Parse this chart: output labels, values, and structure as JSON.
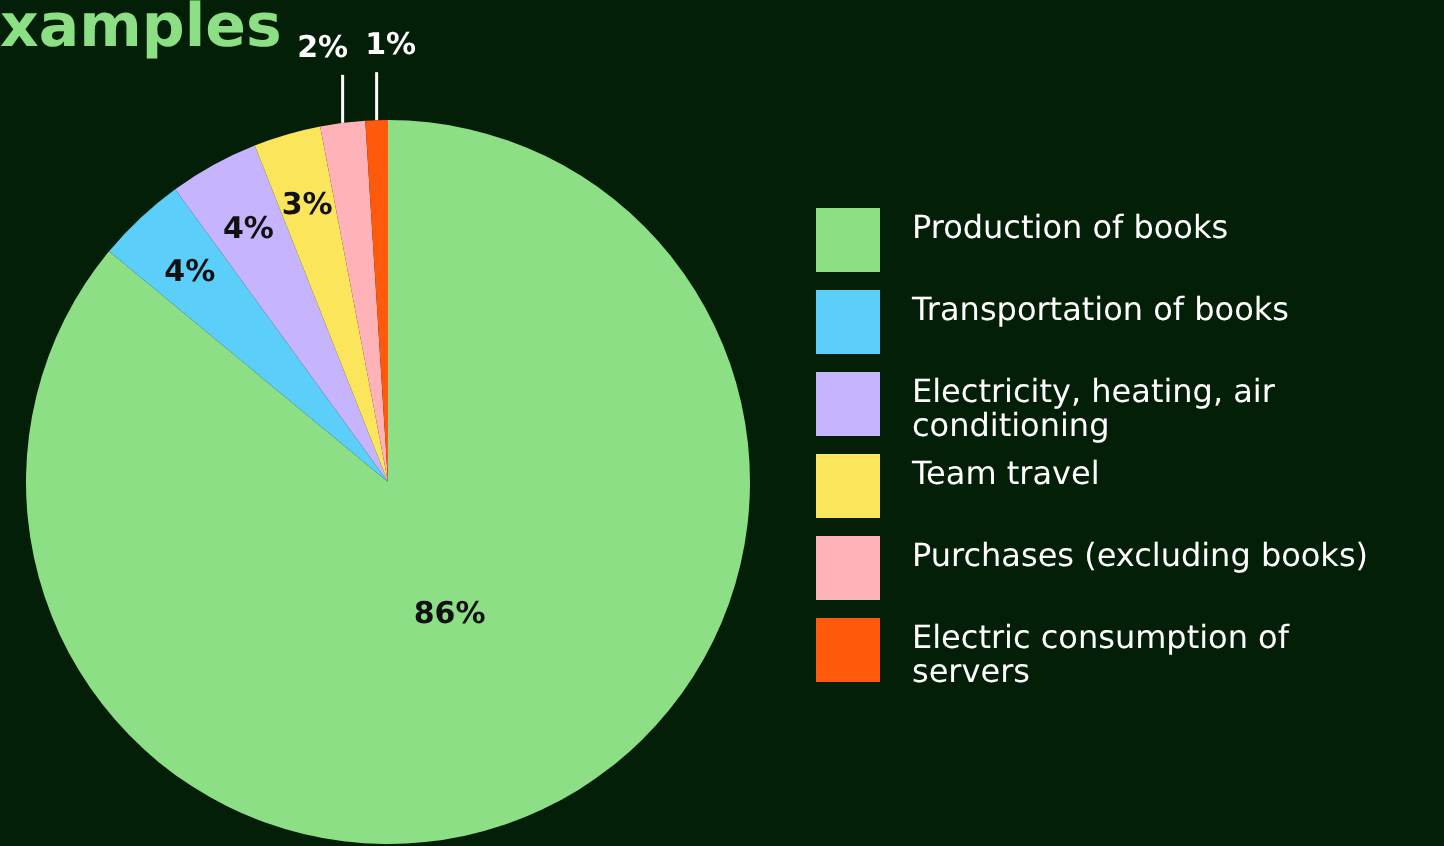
{
  "chart_data": {
    "type": "pie",
    "title": "xamples",
    "categories": [
      "Production of books",
      "Transportation of books",
      "Electricity, heating, air conditioning",
      "Team travel",
      "Purchases (excluding books)",
      "Electric consumption of servers"
    ],
    "values": [
      86,
      4,
      4,
      3,
      2,
      1
    ],
    "colors": [
      "#8ddf85",
      "#5bcefa",
      "#c6b5fe",
      "#fbe55a",
      "#ffb3b8",
      "#ff5a0c"
    ],
    "value_labels": [
      "86%",
      "4%",
      "4%",
      "3%",
      "2%",
      "1%"
    ],
    "legend": "right"
  }
}
